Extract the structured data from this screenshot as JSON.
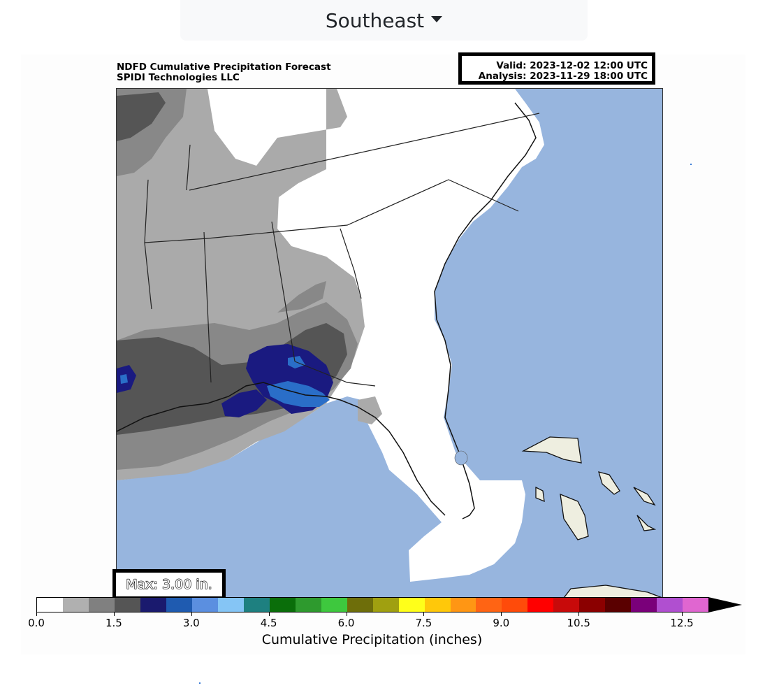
{
  "region_selector": {
    "label": "Southeast"
  },
  "figure": {
    "title": "NDFD Cumulative Precipitation Forecast",
    "subtitle": "SPIDI Technologies LLC",
    "valid": "Valid: 2023-12-02 12:00 UTC",
    "analysis": "Analysis: 2023-11-29 18:00 UTC",
    "max": "Max: 3.00 in."
  },
  "colorbar": {
    "label": "Cumulative Precipitation (inches)",
    "ticks": [
      "0.0",
      "1.5",
      "3.0",
      "4.5",
      "6.0",
      "7.5",
      "9.0",
      "10.5",
      "12.5"
    ],
    "colors": [
      "#ffffff",
      "#b0b0b0",
      "#808080",
      "#555555",
      "#1a1a6e",
      "#1f5bb0",
      "#5b8fe0",
      "#85c5f5",
      "#1e8080",
      "#0a6e0a",
      "#2e9a2e",
      "#3ec83e",
      "#6e6e0a",
      "#a0a010",
      "#ffff1a",
      "#ffc80a",
      "#ff9614",
      "#ff6414",
      "#ff4b0a",
      "#ff0000",
      "#c80a0a",
      "#8b0000",
      "#5a0000",
      "#7a007a",
      "#b04fd0",
      "#e066d0"
    ],
    "extend": "max"
  },
  "map": {
    "colors": {
      "ocean": "#97b5de",
      "land_none": "#ffffff",
      "light_gray": "#aaaaaa",
      "mid_gray": "#888888",
      "dark_gray": "#555555",
      "navy": "#1a1a80",
      "blue": "#2a6ec8",
      "islands": "#eeeee0"
    }
  }
}
